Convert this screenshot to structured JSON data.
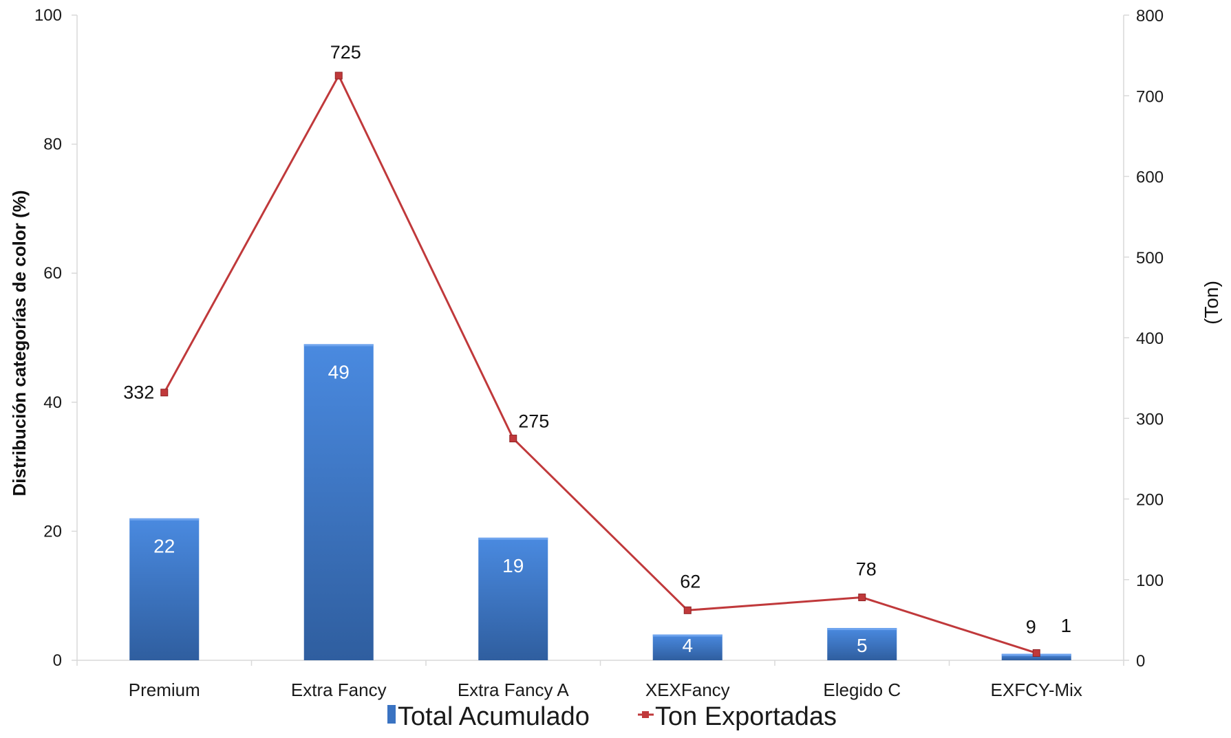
{
  "chart_data": {
    "type": "bar",
    "categories": [
      "Premium",
      "Extra Fancy",
      "Extra Fancy A",
      "XEXFancy",
      "Elegido C",
      "EXFCY-Mix"
    ],
    "series": [
      {
        "name": "Total Acumulado",
        "type": "bar",
        "axis": "left",
        "values": [
          22,
          49,
          19,
          4,
          5,
          1
        ],
        "data_labels": [
          "22",
          "49",
          "19",
          "4",
          "5",
          "1"
        ],
        "color": "#3a73c2"
      },
      {
        "name": "Ton Exportadas",
        "type": "line",
        "axis": "right",
        "values": [
          332,
          725,
          275,
          62,
          78,
          9
        ],
        "data_labels": [
          "332",
          "725",
          "275",
          "62",
          "78",
          "9"
        ],
        "color": "#c0393b"
      }
    ],
    "ylabel": "Distribución categorías de color (%)",
    "y2label": "(Ton)",
    "ylim": [
      0,
      100
    ],
    "y2lim": [
      0,
      800
    ],
    "yticks": [
      "0",
      "20",
      "40",
      "60",
      "80",
      "100"
    ],
    "y2ticks": [
      "0",
      "100",
      "200",
      "300",
      "400",
      "500",
      "600",
      "700",
      "800"
    ],
    "grid": false,
    "legend_position": "bottom"
  }
}
